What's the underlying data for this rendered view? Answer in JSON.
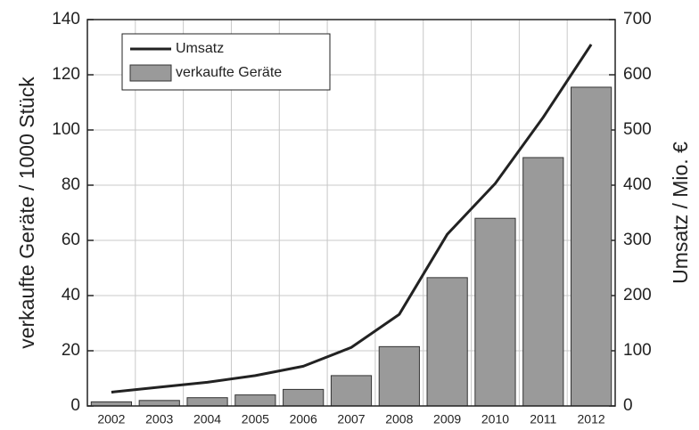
{
  "chart_data": {
    "type": "bar_line",
    "categories": [
      "2002",
      "2003",
      "2004",
      "2005",
      "2006",
      "2007",
      "2008",
      "2009",
      "2010",
      "2011",
      "2012"
    ],
    "series": [
      {
        "name": "Umsatz",
        "type": "line",
        "axis": "y2",
        "color": "#222222",
        "values": [
          25,
          34,
          43,
          55,
          72,
          106,
          166,
          311,
          403,
          523,
          655
        ]
      },
      {
        "name": "verkaufte Geräte",
        "type": "bar",
        "axis": "y",
        "color": "#9a9a9a",
        "values": [
          1.5,
          2,
          3,
          4,
          6,
          11,
          21.5,
          46.5,
          68,
          90,
          115.5
        ]
      }
    ],
    "ylabel": "verkaufte Geräte / 1000 Stück",
    "y2label": "Umsatz / Mio. €",
    "ylim": [
      0,
      140
    ],
    "yticks": [
      0,
      20,
      40,
      60,
      80,
      100,
      120,
      140
    ],
    "y2lim": [
      0,
      700
    ],
    "y2ticks": [
      0,
      100,
      200,
      300,
      400,
      500,
      600,
      700
    ],
    "grid": true,
    "legend": "upper left"
  }
}
